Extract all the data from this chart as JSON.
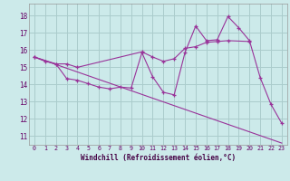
{
  "background_color": "#cceaea",
  "grid_color": "#aacccc",
  "line_color": "#993399",
  "xlabel": "Windchill (Refroidissement éolien,°C)",
  "xlim": [
    -0.5,
    23.5
  ],
  "ylim": [
    10.5,
    18.7
  ],
  "yticks": [
    11,
    12,
    13,
    14,
    15,
    16,
    17,
    18
  ],
  "xticks": [
    0,
    1,
    2,
    3,
    4,
    5,
    6,
    7,
    8,
    9,
    10,
    11,
    12,
    13,
    14,
    15,
    16,
    17,
    18,
    19,
    20,
    21,
    22,
    23
  ],
  "series1_x": [
    0,
    1,
    2,
    3,
    4,
    5,
    6,
    7,
    8,
    9,
    10,
    11,
    12,
    13,
    14,
    15,
    16,
    17,
    18,
    19,
    20,
    21,
    22,
    23
  ],
  "series1_y": [
    15.6,
    15.35,
    15.2,
    14.35,
    14.25,
    14.05,
    13.85,
    13.75,
    13.85,
    13.8,
    15.85,
    14.45,
    13.55,
    13.4,
    15.85,
    17.4,
    16.55,
    16.6,
    17.95,
    17.3,
    16.55,
    14.4,
    12.85,
    11.75
  ],
  "series2_x": [
    0,
    2,
    3,
    4,
    10,
    11,
    12,
    13,
    14,
    15,
    16,
    17,
    18,
    20
  ],
  "series2_y": [
    15.6,
    15.2,
    15.2,
    15.0,
    15.9,
    15.6,
    15.35,
    15.5,
    16.1,
    16.2,
    16.45,
    16.5,
    16.55,
    16.5
  ],
  "series3_x": [
    0,
    23
  ],
  "series3_y": [
    15.6,
    10.6
  ]
}
